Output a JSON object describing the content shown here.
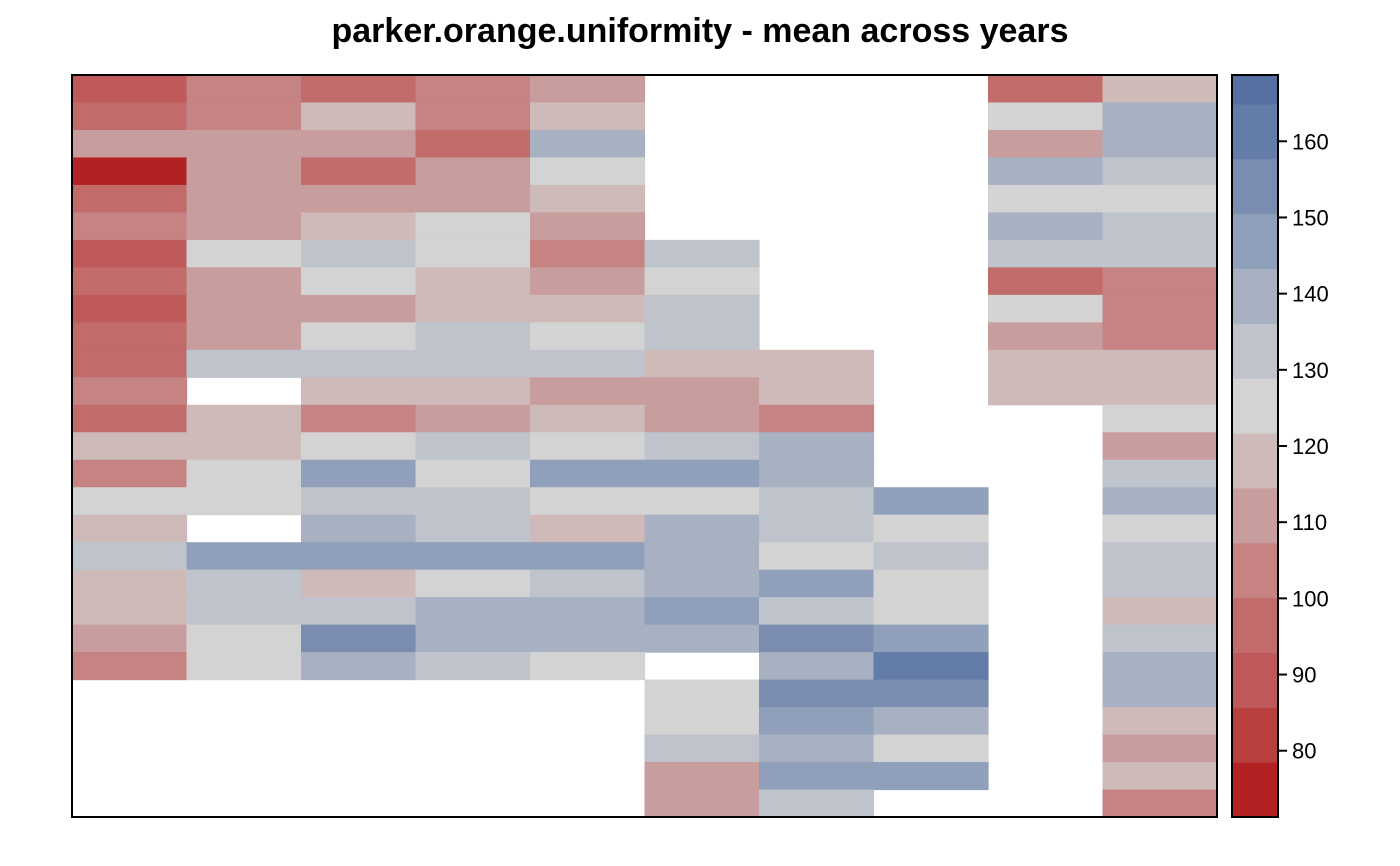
{
  "chart_data": {
    "type": "heatmap",
    "title": "parker.orange.uniformity - mean across years",
    "columns": 10,
    "rows": 27,
    "colorbar": {
      "ticks": [
        80,
        90,
        100,
        110,
        120,
        130,
        140,
        150,
        160
      ],
      "range": [
        71.3,
        168.7
      ],
      "bins": [
        {
          "from": 71.3,
          "to": 78.5,
          "color": "#B22222"
        },
        {
          "from": 78.5,
          "to": 85.7,
          "color": "#B8403E"
        },
        {
          "from": 85.7,
          "to": 92.9,
          "color": "#BE5A59"
        },
        {
          "from": 92.9,
          "to": 100.1,
          "color": "#C26B6B"
        },
        {
          "from": 100.1,
          "to": 107.3,
          "color": "#C58383"
        },
        {
          "from": 107.3,
          "to": 114.5,
          "color": "#C89D9D"
        },
        {
          "from": 114.5,
          "to": 121.7,
          "color": "#CFBABA"
        },
        {
          "from": 121.7,
          "to": 128.9,
          "color": "#D3D3D3"
        },
        {
          "from": 128.9,
          "to": 136.1,
          "color": "#BFC4CC"
        },
        {
          "from": 136.1,
          "to": 143.3,
          "color": "#A7B1C2"
        },
        {
          "from": 143.3,
          "to": 150.5,
          "color": "#909FBA"
        },
        {
          "from": 150.5,
          "to": 157.7,
          "color": "#7A8DB1"
        },
        {
          "from": 157.7,
          "to": 164.9,
          "color": "#637CA8"
        },
        {
          "from": 164.9,
          "to": 168.7,
          "color": "#5670A3"
        }
      ]
    },
    "cells": [
      [
        92,
        104,
        96,
        104,
        111,
        null,
        null,
        null,
        96,
        118
      ],
      [
        97,
        104,
        118,
        104,
        118,
        null,
        null,
        null,
        125,
        140
      ],
      [
        111,
        111,
        111,
        97,
        140,
        null,
        null,
        null,
        111,
        140
      ],
      [
        75,
        111,
        97,
        111,
        125,
        null,
        null,
        null,
        140,
        133
      ],
      [
        97,
        111,
        111,
        111,
        118,
        null,
        null,
        null,
        125,
        125
      ],
      [
        104,
        111,
        118,
        125,
        111,
        null,
        null,
        null,
        140,
        133
      ],
      [
        92,
        125,
        133,
        125,
        104,
        133,
        null,
        null,
        133,
        133
      ],
      [
        97,
        111,
        125,
        118,
        111,
        125,
        null,
        null,
        96,
        104
      ],
      [
        92,
        111,
        111,
        118,
        118,
        133,
        null,
        null,
        125,
        104
      ],
      [
        97,
        111,
        125,
        133,
        125,
        133,
        null,
        null,
        111,
        104
      ],
      [
        97,
        133,
        133,
        133,
        133,
        118,
        118,
        null,
        118,
        118
      ],
      [
        104,
        null,
        118,
        118,
        111,
        111,
        118,
        null,
        118,
        118
      ],
      [
        96,
        118,
        104,
        111,
        118,
        111,
        104,
        null,
        null,
        125
      ],
      [
        118,
        118,
        125,
        133,
        125,
        133,
        140,
        null,
        null,
        111
      ],
      [
        104,
        125,
        147,
        125,
        147,
        147,
        140,
        null,
        null,
        133
      ],
      [
        125,
        125,
        133,
        133,
        125,
        125,
        133,
        147,
        null,
        140
      ],
      [
        118,
        null,
        140,
        133,
        118,
        140,
        133,
        125,
        null,
        125
      ],
      [
        133,
        147,
        147,
        147,
        147,
        140,
        125,
        133,
        null,
        133
      ],
      [
        118,
        133,
        118,
        125,
        133,
        140,
        147,
        125,
        null,
        133
      ],
      [
        118,
        133,
        133,
        140,
        140,
        147,
        133,
        125,
        null,
        118
      ],
      [
        111,
        125,
        154,
        140,
        140,
        140,
        154,
        147,
        null,
        133
      ],
      [
        104,
        125,
        140,
        133,
        125,
        null,
        140,
        161,
        null,
        140
      ],
      [
        null,
        null,
        null,
        null,
        null,
        125,
        154,
        154,
        null,
        140
      ],
      [
        null,
        null,
        null,
        null,
        null,
        125,
        147,
        140,
        null,
        118
      ],
      [
        null,
        null,
        null,
        null,
        null,
        133,
        140,
        125,
        null,
        111
      ],
      [
        null,
        null,
        null,
        null,
        null,
        111,
        147,
        147,
        null,
        118
      ],
      [
        null,
        null,
        null,
        null,
        null,
        111,
        133,
        null,
        null,
        104
      ]
    ]
  }
}
